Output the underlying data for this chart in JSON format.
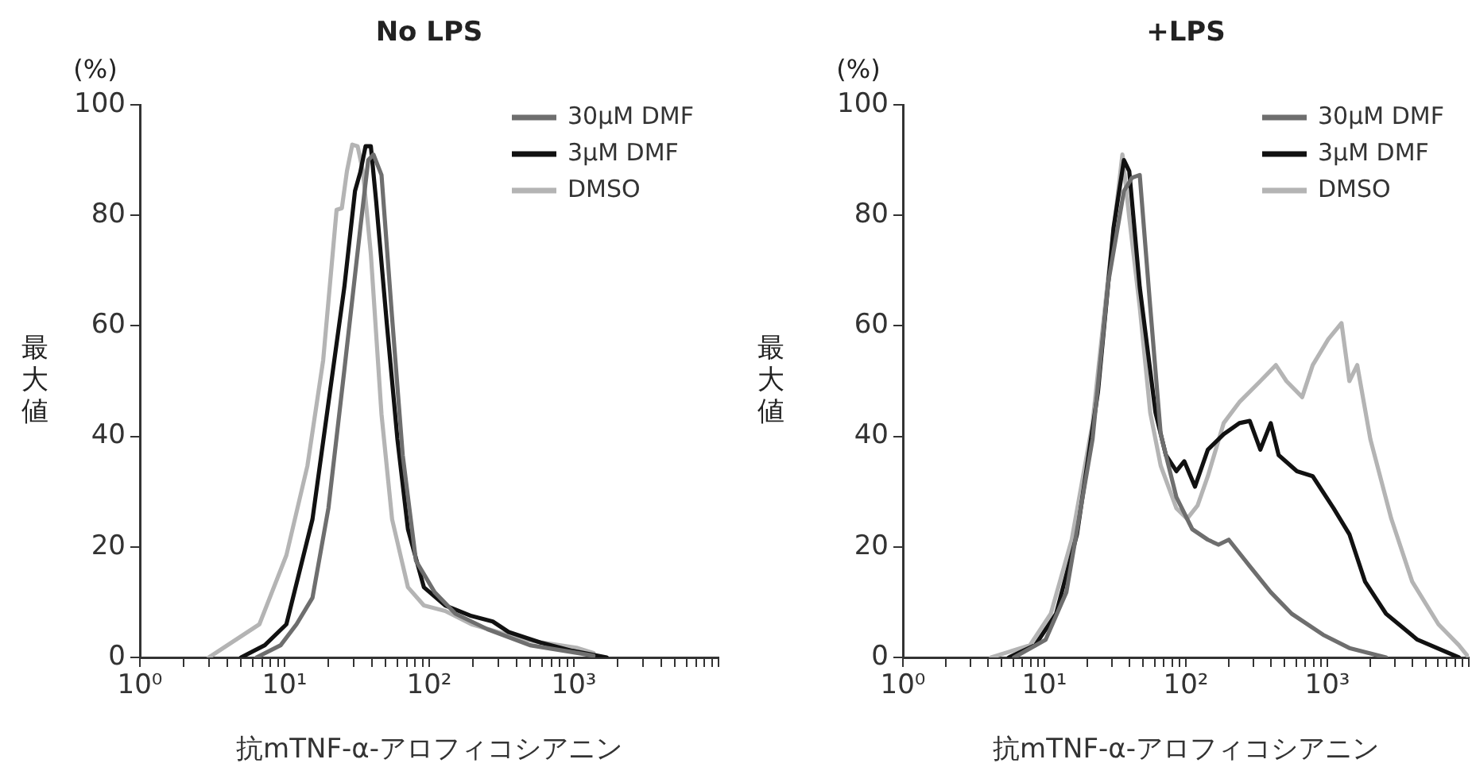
{
  "chart_data": [
    {
      "type": "line",
      "title": "No LPS",
      "xlabel": "抗mTNF-α-アロフィコシアニン",
      "ylabel": "最大値",
      "annotations": [
        "(%)"
      ],
      "log": "x",
      "legend": "top right",
      "grid": false,
      "xlim": [
        1,
        10000
      ],
      "ylim": [
        0,
        100
      ],
      "yticks": [
        0,
        20,
        40,
        60,
        80,
        100
      ],
      "xticks": [
        {
          "value": 1,
          "label": "10⁰"
        },
        {
          "value": 2,
          "label": null
        },
        {
          "value": 3,
          "label": null
        },
        {
          "value": 4,
          "label": null
        },
        {
          "value": 5,
          "label": null
        },
        {
          "value": 6,
          "label": null
        },
        {
          "value": 7,
          "label": null
        },
        {
          "value": 8,
          "label": null
        },
        {
          "value": 9,
          "label": null
        },
        {
          "value": 10,
          "label": "10¹"
        },
        {
          "value": 20,
          "label": null
        },
        {
          "value": 30,
          "label": null
        },
        {
          "value": 40,
          "label": null
        },
        {
          "value": 50,
          "label": null
        },
        {
          "value": 60,
          "label": null
        },
        {
          "value": 70,
          "label": null
        },
        {
          "value": 80,
          "label": null
        },
        {
          "value": 90,
          "label": null
        },
        {
          "value": 100,
          "label": "10²"
        },
        {
          "value": 200,
          "label": null
        },
        {
          "value": 300,
          "label": null
        },
        {
          "value": 400,
          "label": null
        },
        {
          "value": 500,
          "label": null
        },
        {
          "value": 600,
          "label": null
        },
        {
          "value": 700,
          "label": null
        },
        {
          "value": 800,
          "label": null
        },
        {
          "value": 900,
          "label": null
        },
        {
          "value": 1000,
          "label": "10³"
        },
        {
          "value": 2000,
          "label": null
        },
        {
          "value": 3000,
          "label": null
        },
        {
          "value": 4000,
          "label": null
        },
        {
          "value": 5000,
          "label": null
        },
        {
          "value": 6000,
          "label": null
        },
        {
          "value": 7000,
          "label": null
        },
        {
          "value": 8000,
          "label": null
        },
        {
          "value": 9000,
          "label": null
        },
        {
          "value": 10000,
          "label": null
        }
      ],
      "series": [
        {
          "name": "30μM DMF",
          "color": "#6e6e6e",
          "x": [
            6.4,
            9.4,
            12.1,
            15.6,
            20.1,
            25.9,
            33.4,
            37.9,
            41.2,
            46.8,
            55.4,
            65.6,
            81,
            109,
            152,
            253,
            497,
            1061,
            1367
          ],
          "values": [
            0,
            2.2,
            6,
            10.8,
            27,
            52,
            77.7,
            90,
            91,
            87.3,
            61.5,
            36.6,
            17.5,
            11.8,
            7.9,
            5.1,
            2.2,
            0.8,
            0.3
          ]
        },
        {
          "name": "3μM DMF",
          "color": "#111111",
          "x": [
            5,
            7.3,
            10.3,
            15.6,
            20.1,
            25.9,
            30.7,
            33.4,
            36.3,
            39.5,
            43,
            50.9,
            60.3,
            71.3,
            91.9,
            129,
            196,
            275,
            354,
            588,
            975,
            1687
          ],
          "values": [
            0,
            2.2,
            6,
            25,
            46,
            67,
            84.4,
            87.8,
            92.5,
            92.5,
            82.5,
            60.5,
            39.5,
            23.2,
            12.7,
            9.4,
            7.5,
            6.5,
            4.6,
            2.7,
            1.2,
            0
          ]
        },
        {
          "name": "DMSO",
          "color": "#b4b4b4",
          "x": [
            3,
            6.7,
            10.3,
            14.4,
            18.5,
            22.9,
            24.9,
            27,
            29.4,
            32,
            34.8,
            39.5,
            46.8,
            55.4,
            71.3,
            91.9,
            129,
            196,
            456,
            1061,
            1367
          ],
          "values": [
            0,
            6,
            18.5,
            34.7,
            53.8,
            81,
            81.3,
            88,
            92.8,
            92.5,
            88,
            73,
            44,
            25,
            12.7,
            9.4,
            8.4,
            6,
            3.2,
            1.7,
            0.8
          ]
        }
      ]
    },
    {
      "type": "line",
      "title": "+LPS",
      "xlabel": "抗mTNF-α-アロフィコシアニン",
      "ylabel": "最大値",
      "annotations": [
        "(%)"
      ],
      "log": "x",
      "legend": "top right",
      "grid": false,
      "xlim": [
        1,
        10000
      ],
      "ylim": [
        0,
        100
      ],
      "yticks": [
        0,
        20,
        40,
        60,
        80,
        100
      ],
      "xticks": [
        {
          "value": 1,
          "label": "10⁰"
        },
        {
          "value": 2,
          "label": null
        },
        {
          "value": 3,
          "label": null
        },
        {
          "value": 4,
          "label": null
        },
        {
          "value": 5,
          "label": null
        },
        {
          "value": 6,
          "label": null
        },
        {
          "value": 7,
          "label": null
        },
        {
          "value": 8,
          "label": null
        },
        {
          "value": 9,
          "label": null
        },
        {
          "value": 10,
          "label": "10¹"
        },
        {
          "value": 20,
          "label": null
        },
        {
          "value": 30,
          "label": null
        },
        {
          "value": 40,
          "label": null
        },
        {
          "value": 50,
          "label": null
        },
        {
          "value": 60,
          "label": null
        },
        {
          "value": 70,
          "label": null
        },
        {
          "value": 80,
          "label": null
        },
        {
          "value": 90,
          "label": null
        },
        {
          "value": 100,
          "label": "10²"
        },
        {
          "value": 200,
          "label": null
        },
        {
          "value": 300,
          "label": null
        },
        {
          "value": 400,
          "label": null
        },
        {
          "value": 500,
          "label": null
        },
        {
          "value": 600,
          "label": null
        },
        {
          "value": 700,
          "label": null
        },
        {
          "value": 800,
          "label": null
        },
        {
          "value": 900,
          "label": null
        },
        {
          "value": 1000,
          "label": "10³"
        },
        {
          "value": 2000,
          "label": null
        },
        {
          "value": 3000,
          "label": null
        },
        {
          "value": 4000,
          "label": null
        },
        {
          "value": 5000,
          "label": null
        },
        {
          "value": 6000,
          "label": null
        },
        {
          "value": 7000,
          "label": null
        },
        {
          "value": 8000,
          "label": null
        },
        {
          "value": 9000,
          "label": null
        },
        {
          "value": 10000,
          "label": null
        }
      ],
      "series": [
        {
          "name": "30μM DMF",
          "color": "#6e6e6e",
          "x": [
            6.1,
            10.2,
            14.3,
            21.9,
            28.3,
            36.5,
            41.6,
            47.2,
            56,
            66.4,
            85.7,
            111,
            143,
            170,
            201,
            283,
            398,
            560,
            933,
            1431,
            2600
          ],
          "values": [
            0,
            3.2,
            11.8,
            39.5,
            67.9,
            84.4,
            86.8,
            87.3,
            63.4,
            40.4,
            29,
            23.2,
            21.3,
            20.4,
            21.3,
            16.5,
            11.8,
            7.9,
            4.1,
            1.7,
            0
          ]
        },
        {
          "name": "3μM DMF",
          "color": "#111111",
          "x": [
            5.6,
            8.6,
            12.1,
            17,
            23.9,
            30.8,
            36.5,
            39.8,
            47.2,
            61,
            72.3,
            85.7,
            97.5,
            116,
            143,
            185,
            239,
            283,
            336,
            398,
            453,
            610,
            788,
            1107,
            1431,
            1849,
            2600,
            4335,
            8510
          ],
          "values": [
            0,
            2.2,
            7.9,
            22.3,
            48,
            77.7,
            90,
            88,
            67,
            44.3,
            36.6,
            33.7,
            35.5,
            30.9,
            37.6,
            40.4,
            42.4,
            42.8,
            37.6,
            42.4,
            36.6,
            33.7,
            32.8,
            27,
            22.3,
            13.7,
            7.9,
            3.2,
            0
          ]
        },
        {
          "name": "DMSO",
          "color": "#b4b4b4",
          "x": [
            4.2,
            7.9,
            11.1,
            15.6,
            21.9,
            28.3,
            33.6,
            35.6,
            39.8,
            47.2,
            56,
            66.4,
            85.7,
            102,
            121,
            143,
            185,
            239,
            336,
            433,
            514,
            664,
            788,
            1016,
            1259,
            1431,
            1626,
            2014,
            2831,
            3981,
            6100,
            8510,
            9770
          ],
          "values": [
            0,
            2.2,
            7.9,
            21.3,
            42.4,
            69,
            85.4,
            91,
            79.6,
            63.4,
            44.3,
            34.7,
            27,
            25.1,
            27.5,
            32.8,
            42.4,
            46.2,
            50,
            52.9,
            50,
            47.1,
            52.9,
            57.6,
            60.5,
            50,
            52.9,
            39.5,
            25.1,
            13.7,
            6,
            2.2,
            0.3
          ]
        }
      ]
    }
  ]
}
